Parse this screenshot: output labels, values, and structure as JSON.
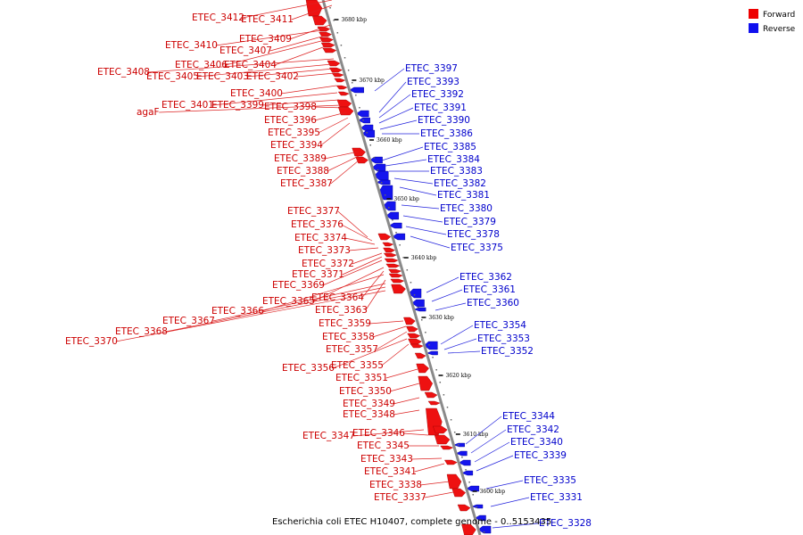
{
  "caption": "Escherichia coli ETEC H10407, complete genome - 0..5153435",
  "legend": [
    {
      "label": "Forward",
      "color": "#ee0000"
    },
    {
      "label": "Reverse",
      "color": "#1010ee"
    }
  ],
  "colors": {
    "forward": "#ee1111",
    "reverse": "#1515ee",
    "forward_label": "#cc0000",
    "reverse_label": "#0000cc",
    "backbone": "#8a8a8a"
  },
  "ticks": [
    "3680 kbp",
    "3670 kbp",
    "3660 kbp",
    "3650 kbp",
    "3640 kbp",
    "3630 kbp",
    "3620 kbp",
    "3610 kbp",
    "3600 kbp"
  ],
  "forward_genes": [
    "ETEC_3412",
    "ETEC_3411",
    "ETEC_3409",
    "ETEC_3410",
    "ETEC_3407",
    "ETEC_3406",
    "ETEC_3404",
    "ETEC_3408",
    "ETEC_3405",
    "ETEC_3403",
    "ETEC_3402",
    "ETEC_3400",
    "ETEC_3401",
    "ETEC_3399",
    "agaF",
    "ETEC_3398",
    "ETEC_3396",
    "ETEC_3395",
    "ETEC_3394",
    "ETEC_3389",
    "ETEC_3388",
    "ETEC_3387",
    "ETEC_3377",
    "ETEC_3376",
    "ETEC_3374",
    "ETEC_3373",
    "ETEC_3372",
    "ETEC_3371",
    "ETEC_3369",
    "ETEC_3365",
    "ETEC_3364",
    "ETEC_3366",
    "ETEC_3363",
    "ETEC_3367",
    "ETEC_3368",
    "ETEC_3370",
    "ETEC_3359",
    "ETEC_3358",
    "ETEC_3357",
    "ETEC_3356",
    "ETEC_3355",
    "ETEC_3351",
    "ETEC_3350",
    "ETEC_3349",
    "ETEC_3348",
    "ETEC_3347",
    "ETEC_3346",
    "ETEC_3345",
    "ETEC_3343",
    "ETEC_3341",
    "ETEC_3338",
    "ETEC_3337"
  ],
  "reverse_genes": [
    "ETEC_3397",
    "ETEC_3393",
    "ETEC_3392",
    "ETEC_3391",
    "ETEC_3390",
    "ETEC_3386",
    "ETEC_3385",
    "ETEC_3384",
    "ETEC_3383",
    "ETEC_3382",
    "ETEC_3381",
    "ETEC_3380",
    "ETEC_3379",
    "ETEC_3378",
    "ETEC_3375",
    "ETEC_3362",
    "ETEC_3361",
    "ETEC_3360",
    "ETEC_3354",
    "ETEC_3353",
    "ETEC_3352",
    "ETEC_3344",
    "ETEC_3342",
    "ETEC_3340",
    "ETEC_3339",
    "ETEC_3335",
    "ETEC_3331",
    "ETEC_3328"
  ]
}
